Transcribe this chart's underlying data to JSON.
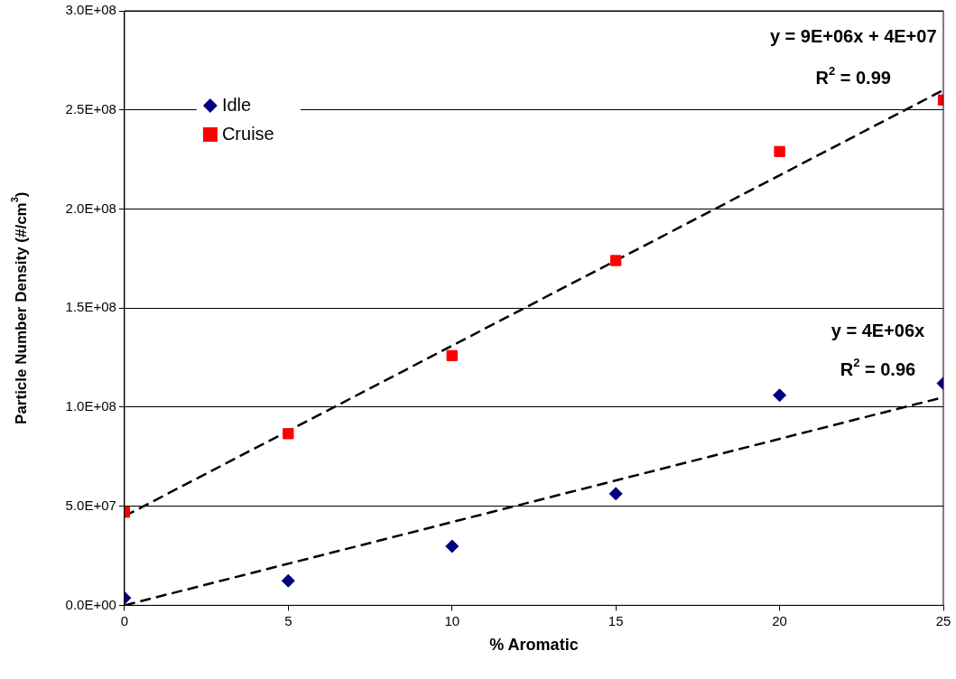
{
  "chart_data": {
    "type": "scatter",
    "xlabel": "% Aromatic",
    "ylabel": "Particle Number Density (#/cm$^{3}$)",
    "series": [
      {
        "name": "Idle",
        "color": "#000080",
        "marker": "diamond",
        "x": [
          0,
          5,
          10,
          15,
          20,
          25
        ],
        "values": [
          3700000,
          12400000,
          29800000,
          56300000,
          106000000,
          112000000
        ]
      },
      {
        "name": "Cruise",
        "color": "#ff0000",
        "marker": "square",
        "x": [
          0,
          5,
          10,
          15,
          20,
          25
        ],
        "values": [
          47000000,
          86600000,
          126000000,
          174000000,
          229000000,
          255000000
        ]
      },
      {
        "type": "line",
        "color": "#000000",
        "line_style": "dashed",
        "marker": "none",
        "x": [
          0,
          25
        ],
        "values": [
          0,
          105000000
        ]
      },
      {
        "type": "line",
        "color": "#000000",
        "line_style": "dashed",
        "marker": "none",
        "x": [
          0,
          25
        ],
        "values": [
          45000000,
          260000000
        ]
      }
    ],
    "xlim": [
      0,
      25
    ],
    "xticks": [
      0,
      5,
      10,
      15,
      20,
      25
    ],
    "ylim": [
      0,
      300000000
    ],
    "yticks": [
      {
        "value": 0,
        "label": "0.0E+00"
      },
      {
        "value": 50000000,
        "label": "5.0E+07"
      },
      {
        "value": 100000000,
        "label": "1.0E+08"
      },
      {
        "value": 150000000,
        "label": "1.5E+08"
      },
      {
        "value": 200000000,
        "label": "2.0E+08"
      },
      {
        "value": 250000000,
        "label": "2.5E+08"
      },
      {
        "value": 300000000,
        "label": "3.0E+08"
      }
    ],
    "grid": "y",
    "legend": "top left",
    "annotations": [
      "y = 9E+06x + 4E+07",
      "R$^{2}$ = 0.99",
      "y = 4E+06x",
      "R$^{2}$ = 0.96"
    ]
  }
}
